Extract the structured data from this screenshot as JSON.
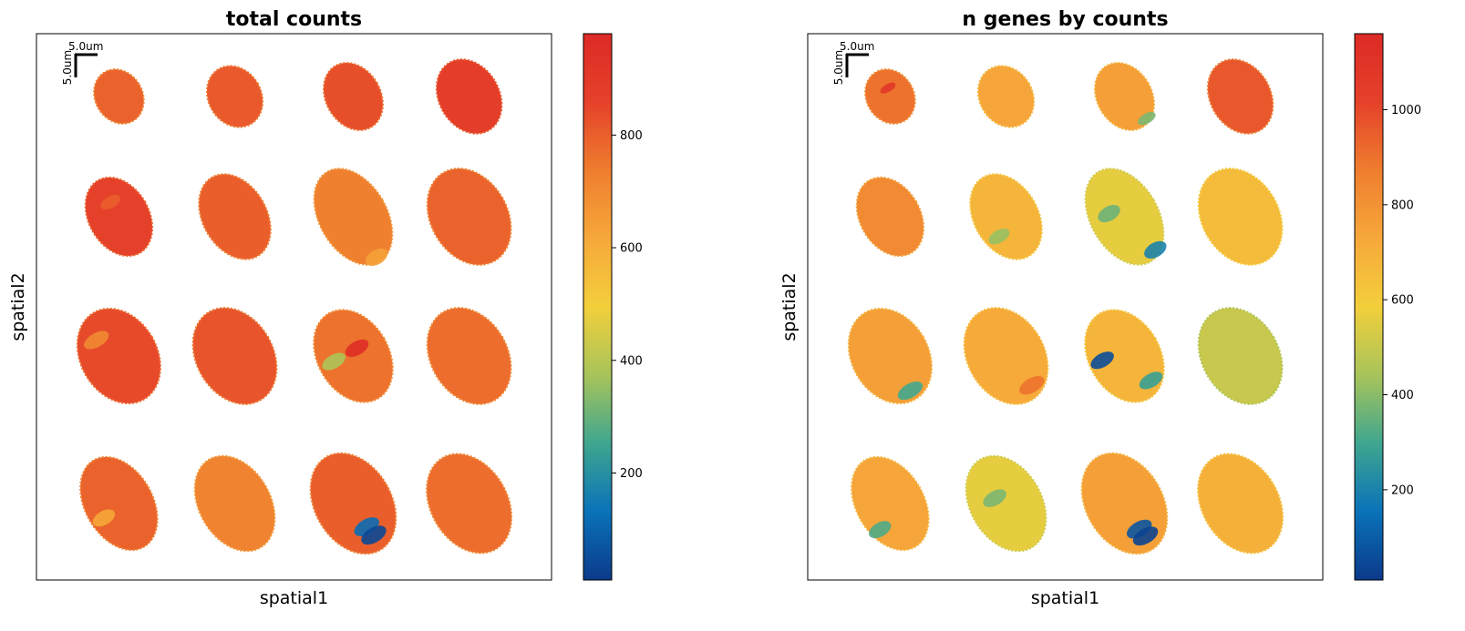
{
  "chart_data": [
    {
      "type": "heatmap",
      "subtype": "spatial scatter",
      "title": "total counts",
      "xlabel": "spatial1",
      "ylabel": "spatial2",
      "scalebar": {
        "label_x": "5.0um",
        "label_y": "5.0um"
      },
      "colorbar": {
        "colormap": [
          "#0b3a8a",
          "#0a72b8",
          "#3fa68f",
          "#a8c45a",
          "#f3cf3b",
          "#f6a83a",
          "#ef7d2e",
          "#e5412a",
          "#dd2a26"
        ],
        "vmin": 10,
        "vmax": 980,
        "ticks": [
          200,
          400,
          600,
          800
        ],
        "tick_labels": [
          "200",
          "400",
          "600",
          "800"
        ]
      },
      "samples": [
        {
          "row": 1,
          "col": 1,
          "mean": 790,
          "spots": []
        },
        {
          "row": 1,
          "col": 2,
          "mean": 810,
          "spots": []
        },
        {
          "row": 1,
          "col": 3,
          "mean": 830,
          "spots": []
        },
        {
          "row": 1,
          "col": 4,
          "mean": 880,
          "spots": []
        },
        {
          "row": 2,
          "col": 1,
          "mean": 860,
          "spots": [
            {
              "u": 0.0,
              "v": -0.4,
              "value": 800
            }
          ]
        },
        {
          "row": 2,
          "col": 2,
          "mean": 800,
          "spots": []
        },
        {
          "row": 2,
          "col": 3,
          "mean": 730,
          "spots": [
            {
              "u": 0.0,
              "v": 0.9,
              "value": 640
            }
          ]
        },
        {
          "row": 2,
          "col": 4,
          "mean": 790,
          "spots": []
        },
        {
          "row": 3,
          "col": 1,
          "mean": 840,
          "spots": [
            {
              "u": -0.3,
              "v": -0.5,
              "value": 700
            }
          ]
        },
        {
          "row": 3,
          "col": 2,
          "mean": 820,
          "spots": []
        },
        {
          "row": 3,
          "col": 3,
          "mean": 760,
          "spots": [
            {
              "u": -0.55,
              "v": -0.1,
              "value": 380
            },
            {
              "u": 0.2,
              "v": -0.1,
              "value": 960
            }
          ]
        },
        {
          "row": 3,
          "col": 4,
          "mean": 770,
          "spots": []
        },
        {
          "row": 4,
          "col": 1,
          "mean": 790,
          "spots": [
            {
              "u": -0.6,
              "v": 0.1,
              "value": 620
            }
          ]
        },
        {
          "row": 4,
          "col": 2,
          "mean": 720,
          "spots": []
        },
        {
          "row": 4,
          "col": 3,
          "mean": 800,
          "spots": [
            {
              "u": 0.0,
              "v": 0.5,
              "value": 120
            },
            {
              "u": 0.05,
              "v": 0.7,
              "value": 40
            }
          ]
        },
        {
          "row": 4,
          "col": 4,
          "mean": 770,
          "spots": []
        }
      ]
    },
    {
      "type": "heatmap",
      "subtype": "spatial scatter",
      "title": "n genes by counts",
      "xlabel": "spatial1",
      "ylabel": "spatial2",
      "scalebar": {
        "label_x": "5.0um",
        "label_y": "5.0um"
      },
      "colorbar": {
        "colormap": [
          "#0b3a8a",
          "#0a72b8",
          "#3fa68f",
          "#a8c45a",
          "#f3cf3b",
          "#f6a83a",
          "#ef7d2e",
          "#e5412a",
          "#dd2a26"
        ],
        "vmin": 10,
        "vmax": 1160,
        "ticks": [
          200,
          400,
          600,
          800,
          1000
        ],
        "tick_labels": [
          "200",
          "400",
          "600",
          "800",
          "1000"
        ]
      },
      "samples": [
        {
          "row": 1,
          "col": 1,
          "mean": 900,
          "spots": [
            {
              "u": 0.1,
              "v": -0.3,
              "value": 1080
            }
          ]
        },
        {
          "row": 1,
          "col": 2,
          "mean": 740,
          "spots": []
        },
        {
          "row": 1,
          "col": 3,
          "mean": 760,
          "spots": [
            {
              "u": 0.3,
              "v": 0.85,
              "value": 380
            }
          ]
        },
        {
          "row": 1,
          "col": 4,
          "mean": 960,
          "spots": []
        },
        {
          "row": 2,
          "col": 1,
          "mean": 830,
          "spots": []
        },
        {
          "row": 2,
          "col": 2,
          "mean": 680,
          "spots": [
            {
              "u": -0.5,
              "v": 0.3,
              "value": 420
            }
          ]
        },
        {
          "row": 2,
          "col": 3,
          "mean": 560,
          "spots": [
            {
              "u": -0.35,
              "v": -0.2,
              "value": 360
            },
            {
              "u": 0.3,
              "v": 0.85,
              "value": 200
            }
          ]
        },
        {
          "row": 2,
          "col": 4,
          "mean": 660,
          "spots": []
        },
        {
          "row": 3,
          "col": 1,
          "mean": 760,
          "spots": [
            {
              "u": 0.0,
              "v": 0.8,
              "value": 300
            }
          ]
        },
        {
          "row": 3,
          "col": 2,
          "mean": 720,
          "spots": [
            {
              "u": 0.2,
              "v": 0.75,
              "value": 900
            }
          ]
        },
        {
          "row": 3,
          "col": 3,
          "mean": 680,
          "spots": [
            {
              "u": -0.6,
              "v": -0.15,
              "value": 60
            },
            {
              "u": 0.3,
              "v": 0.7,
              "value": 280
            }
          ]
        },
        {
          "row": 3,
          "col": 4,
          "mean": 500,
          "spots": []
        },
        {
          "row": 4,
          "col": 1,
          "mean": 740,
          "spots": [
            {
              "u": -0.65,
              "v": 0.35,
              "value": 320
            }
          ]
        },
        {
          "row": 4,
          "col": 2,
          "mean": 560,
          "spots": [
            {
              "u": -0.2,
              "v": -0.2,
              "value": 380
            }
          ]
        },
        {
          "row": 4,
          "col": 3,
          "mean": 760,
          "spots": [
            {
              "u": 0.0,
              "v": 0.55,
              "value": 80
            },
            {
              "u": 0.05,
              "v": 0.72,
              "value": 30
            }
          ]
        },
        {
          "row": 4,
          "col": 4,
          "mean": 700,
          "spots": []
        }
      ]
    }
  ]
}
